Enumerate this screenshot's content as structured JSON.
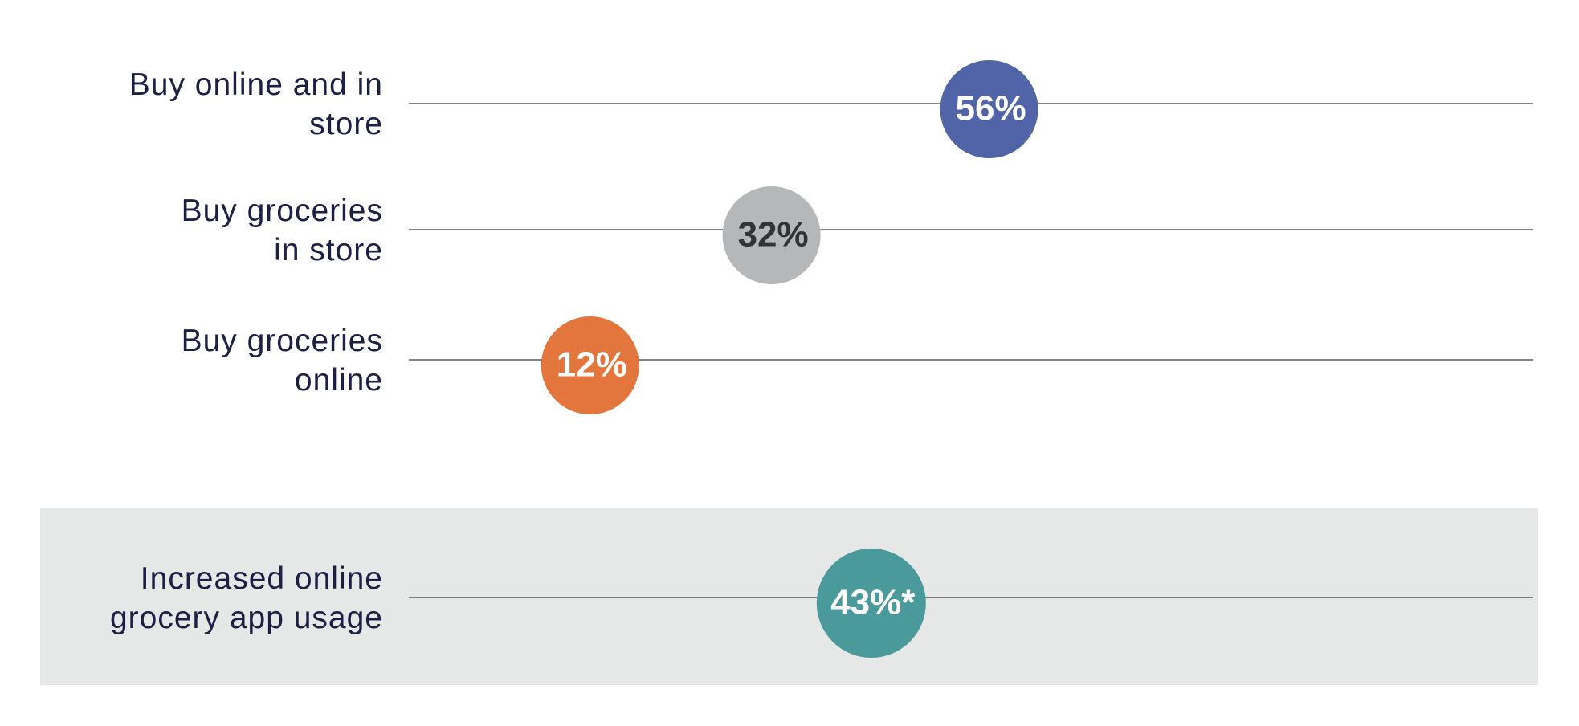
{
  "chart_data": {
    "type": "dot",
    "categories": [
      "Buy online and in\nstore",
      "Buy groceries\nin store",
      "Buy groceries\nonline",
      "Increased online\ngrocery app usage"
    ],
    "values": [
      56,
      32,
      12,
      43
    ],
    "value_labels": [
      "56%",
      "32%",
      "12%",
      "43%*"
    ],
    "colors": [
      "#5264a8",
      "#b6b7b9",
      "#e2763c",
      "#4a9a9b"
    ],
    "xlim": [
      -8,
      116
    ],
    "highlighted_category": 3
  }
}
